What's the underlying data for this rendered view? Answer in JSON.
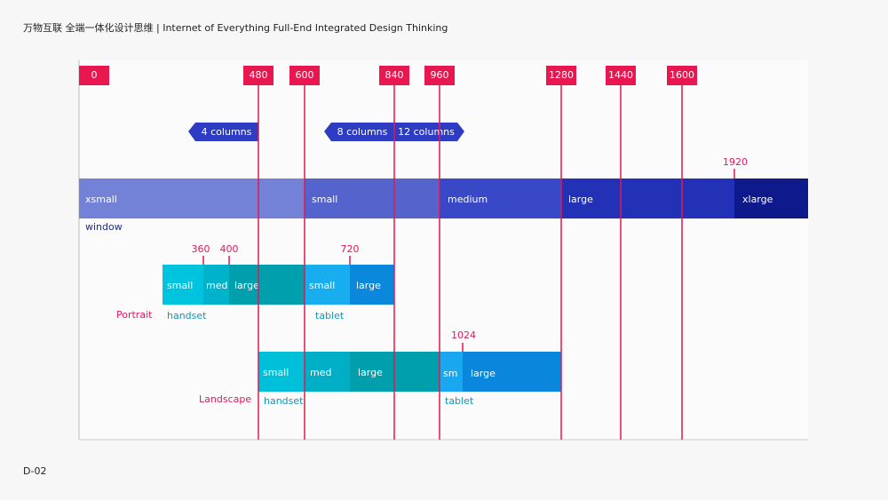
{
  "header": {
    "title": "万物互联 全端一体化设计思维 | Internet of Everything Full-End Integrated Design Thinking"
  },
  "footer": {
    "page": "D-02"
  },
  "breakpoints": [
    "0",
    "480",
    "600",
    "840",
    "960",
    "1280",
    "1440",
    "1600"
  ],
  "columns": [
    "4 columns",
    "8 columns",
    "12 columns"
  ],
  "window": {
    "label": "window",
    "marker": "1920",
    "segments": [
      "xsmall",
      "small",
      "medium",
      "large",
      "xlarge"
    ]
  },
  "portrait": {
    "label": "Portrait",
    "markers": [
      "360",
      "400",
      "720"
    ],
    "segments": [
      "small",
      "med",
      "large",
      "small",
      "large"
    ],
    "groups": [
      "handset",
      "tablet"
    ]
  },
  "landscape": {
    "label": "Landscape",
    "marker": "1024",
    "segments": [
      "small",
      "med",
      "large",
      "sm",
      "large"
    ],
    "groups": [
      "handset",
      "tablet"
    ]
  }
}
